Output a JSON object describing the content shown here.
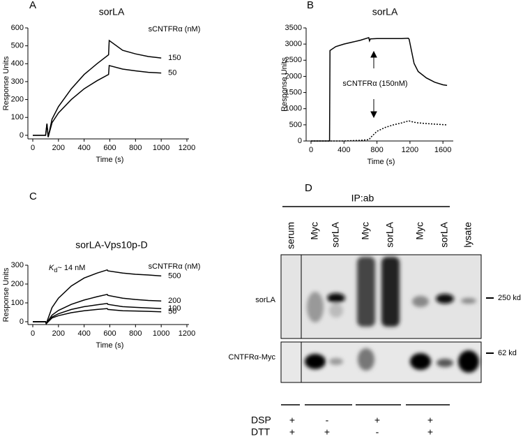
{
  "chart_data": [
    {
      "type": "line",
      "panel": "A",
      "title": "sorLA",
      "y_label": "Response Units",
      "x_label": "Time (s)",
      "annotation": "sCNTFRα (nM)",
      "xlim": [
        0,
        1200
      ],
      "xticks": [
        0,
        200,
        400,
        600,
        800,
        1000,
        1200
      ],
      "ylim": [
        -20,
        600
      ],
      "yticks": [
        0,
        100,
        200,
        300,
        400,
        500,
        600
      ],
      "x": [
        0,
        50,
        100,
        110,
        120,
        150,
        200,
        300,
        400,
        500,
        590,
        595,
        700,
        800,
        900,
        1000
      ],
      "series": [
        {
          "name": "150",
          "color": "#000000",
          "values": [
            0,
            0,
            0,
            65,
            -10,
            90,
            160,
            260,
            340,
            400,
            450,
            530,
            475,
            455,
            440,
            432
          ]
        },
        {
          "name": "50",
          "color": "#000000",
          "values": [
            0,
            0,
            0,
            65,
            -10,
            70,
            125,
            200,
            260,
            305,
            340,
            390,
            370,
            360,
            352,
            348
          ]
        }
      ]
    },
    {
      "type": "line",
      "panel": "B",
      "title": "sorLA",
      "y_label": "Response Units",
      "x_label": "Time (s)",
      "annotation": "sCNTFRα (150nM)",
      "xlim": [
        0,
        1700
      ],
      "xticks": [
        0,
        400,
        800,
        1200,
        1600
      ],
      "ylim": [
        0,
        3500
      ],
      "yticks": [
        0,
        500,
        1000,
        1500,
        2000,
        2500,
        3000,
        3500
      ],
      "x": [
        0,
        225,
        230,
        300,
        400,
        500,
        600,
        700,
        710,
        720,
        800,
        900,
        1000,
        1100,
        1180,
        1190,
        1250,
        1300,
        1400,
        1500,
        1600,
        1650
      ],
      "series": [
        {
          "color": "#000000",
          "dash": "solid",
          "values": [
            0,
            0,
            2800,
            2920,
            3000,
            3060,
            3120,
            3200,
            3100,
            3160,
            3170,
            3170,
            3170,
            3170,
            3180,
            3150,
            2400,
            2150,
            1950,
            1820,
            1740,
            1720
          ]
        },
        {
          "color": "#000000",
          "dash": "dotted",
          "values": [
            0,
            0,
            0,
            0,
            0,
            10,
            20,
            40,
            60,
            100,
            300,
            420,
            500,
            560,
            620,
            620,
            580,
            560,
            540,
            520,
            505,
            500
          ]
        }
      ]
    },
    {
      "type": "line",
      "panel": "C",
      "title": "sorLA-Vps10p-D",
      "y_label": "Response Units",
      "x_label": "Time (s)",
      "annotation": "sCNTFRα (nM)",
      "kd": [
        "K",
        "d",
        "~ 14 nM"
      ],
      "xlim": [
        0,
        1200
      ],
      "xticks": [
        0,
        200,
        400,
        600,
        800,
        1000,
        1200
      ],
      "ylim": [
        -15,
        300
      ],
      "yticks": [
        0,
        100,
        200,
        300
      ],
      "x": [
        0,
        50,
        100,
        105,
        150,
        200,
        300,
        400,
        500,
        580,
        585,
        700,
        800,
        900,
        1000
      ],
      "series": [
        {
          "name": "500",
          "color": "#000000",
          "values": [
            0,
            0,
            0,
            -10,
            75,
            125,
            190,
            232,
            258,
            275,
            270,
            258,
            252,
            248,
            243
          ]
        },
        {
          "name": "200",
          "color": "#000000",
          "values": [
            0,
            0,
            0,
            -10,
            35,
            60,
            92,
            115,
            133,
            145,
            140,
            125,
            118,
            113,
            110
          ]
        },
        {
          "name": "100",
          "color": "#000000",
          "values": [
            0,
            0,
            0,
            -10,
            25,
            42,
            65,
            80,
            90,
            97,
            92,
            80,
            76,
            73,
            70
          ]
        },
        {
          "name": "50",
          "color": "#000000",
          "values": [
            0,
            0,
            0,
            -10,
            20,
            32,
            48,
            58,
            65,
            70,
            65,
            58,
            57,
            55,
            53
          ]
        }
      ]
    }
  ],
  "blot": {
    "panel": "D",
    "ip_label": "IP:ab",
    "lanes": [
      "serum",
      "Myc",
      "sorLA",
      "Myc",
      "sorLA",
      "Myc",
      "sorLA",
      "lysate"
    ],
    "rows": [
      {
        "label": "sorLA",
        "marker": "250 kd"
      },
      {
        "label": "CNTFRα-Myc",
        "marker": "62 kd"
      }
    ],
    "conditions": [
      {
        "label": "DSP",
        "signs": [
          "+",
          "-",
          "+",
          "+"
        ]
      },
      {
        "label": "DTT",
        "signs": [
          "+",
          "+",
          "-",
          "+"
        ]
      }
    ]
  }
}
